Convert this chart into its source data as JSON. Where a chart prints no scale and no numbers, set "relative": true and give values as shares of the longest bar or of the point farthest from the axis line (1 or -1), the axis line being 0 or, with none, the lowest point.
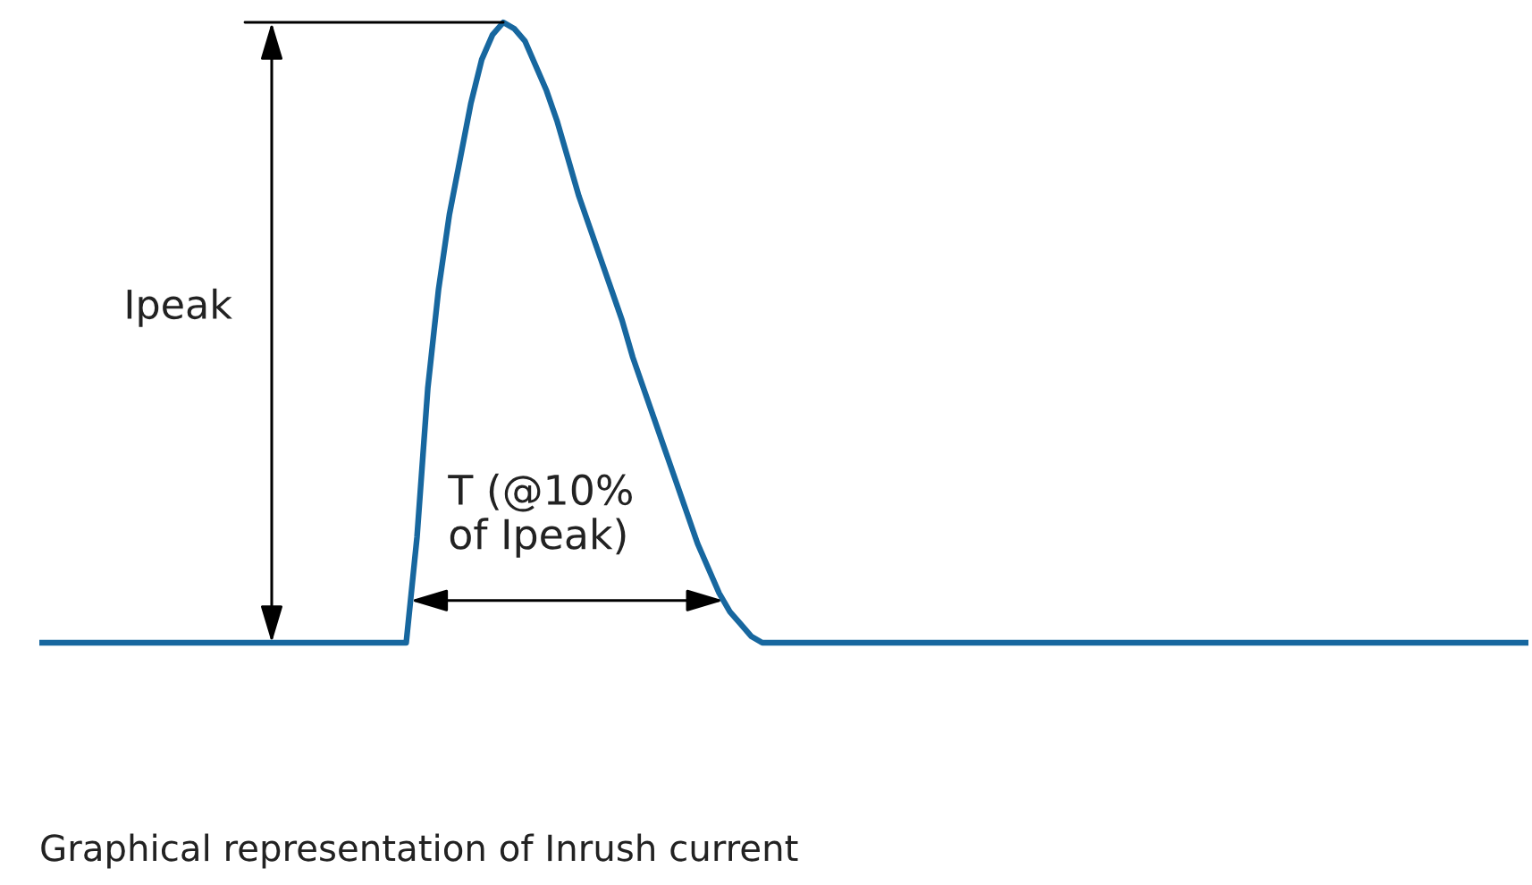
{
  "chart_data": {
    "type": "line",
    "relative": true,
    "categories": [
      null,
      null,
      null,
      null,
      null,
      null,
      null,
      null,
      null,
      null,
      null,
      null,
      null,
      null,
      null,
      null,
      null,
      null,
      null,
      null,
      null,
      null,
      null,
      null,
      null,
      null,
      null,
      null,
      null,
      null,
      null,
      null,
      null,
      null,
      null,
      null,
      null,
      null,
      null,
      null,
      null,
      null,
      null,
      null,
      null,
      null,
      null,
      null,
      null,
      null,
      null,
      null,
      null,
      null,
      null,
      null,
      null,
      null,
      null,
      null,
      null,
      null,
      null,
      null,
      null,
      null,
      null,
      null,
      null,
      null,
      null,
      null,
      null,
      null,
      null,
      null,
      null,
      null,
      null,
      null,
      null,
      null,
      null,
      null,
      null,
      null,
      null,
      null,
      null,
      null,
      null,
      null,
      null,
      null,
      null,
      null,
      null,
      null,
      null,
      null,
      null,
      null,
      null,
      null,
      null,
      null,
      null,
      null,
      null,
      null,
      null,
      null,
      null,
      null,
      null,
      null,
      null,
      null,
      null,
      null,
      null,
      null,
      null,
      null,
      null,
      null,
      null,
      null,
      null,
      null,
      null,
      null,
      null,
      null,
      null,
      null,
      null,
      null,
      null
    ],
    "series": [
      {
        "color": "#17679f",
        "values": [
          0,
          0,
          0,
          0,
          0,
          0,
          0,
          0,
          0,
          0,
          0,
          0,
          0,
          0,
          0,
          0,
          0,
          0,
          0,
          0,
          0,
          0,
          0,
          0,
          0,
          0,
          0,
          0,
          0,
          0,
          0,
          0,
          0,
          0,
          0,
          0.17,
          0.41,
          0.57,
          0.69,
          0.78,
          0.87,
          0.94,
          0.98,
          1,
          0.99,
          0.97,
          0.93,
          0.89,
          0.84,
          0.78,
          0.72,
          0.67,
          0.62,
          0.57,
          0.52,
          0.46,
          0.41,
          0.36,
          0.31,
          0.26,
          0.21,
          0.16,
          0.12,
          0.08,
          0.05,
          0.03,
          0.01,
          0,
          0,
          0,
          0,
          0,
          0,
          0,
          0,
          0,
          0,
          0,
          0,
          0,
          0,
          0,
          0,
          0,
          0,
          0,
          0,
          0,
          0,
          0,
          0,
          0,
          0,
          0,
          0,
          0,
          0,
          0,
          0,
          0,
          0,
          0,
          0,
          0,
          0,
          0,
          0,
          0,
          0,
          0,
          0,
          0,
          0,
          0,
          0,
          0,
          0,
          0,
          0,
          0,
          0,
          0,
          0,
          0,
          0,
          0,
          0,
          0,
          0,
          0,
          0,
          0,
          0,
          0,
          0,
          0,
          0,
          0,
          0
        ]
      }
    ],
    "annotations": [
      "Ipeak",
      "T (@10%\nof Ipeak)",
      "Graphical representation of Inrush current"
    ],
    "marker": "none",
    "line_style": "solid"
  }
}
